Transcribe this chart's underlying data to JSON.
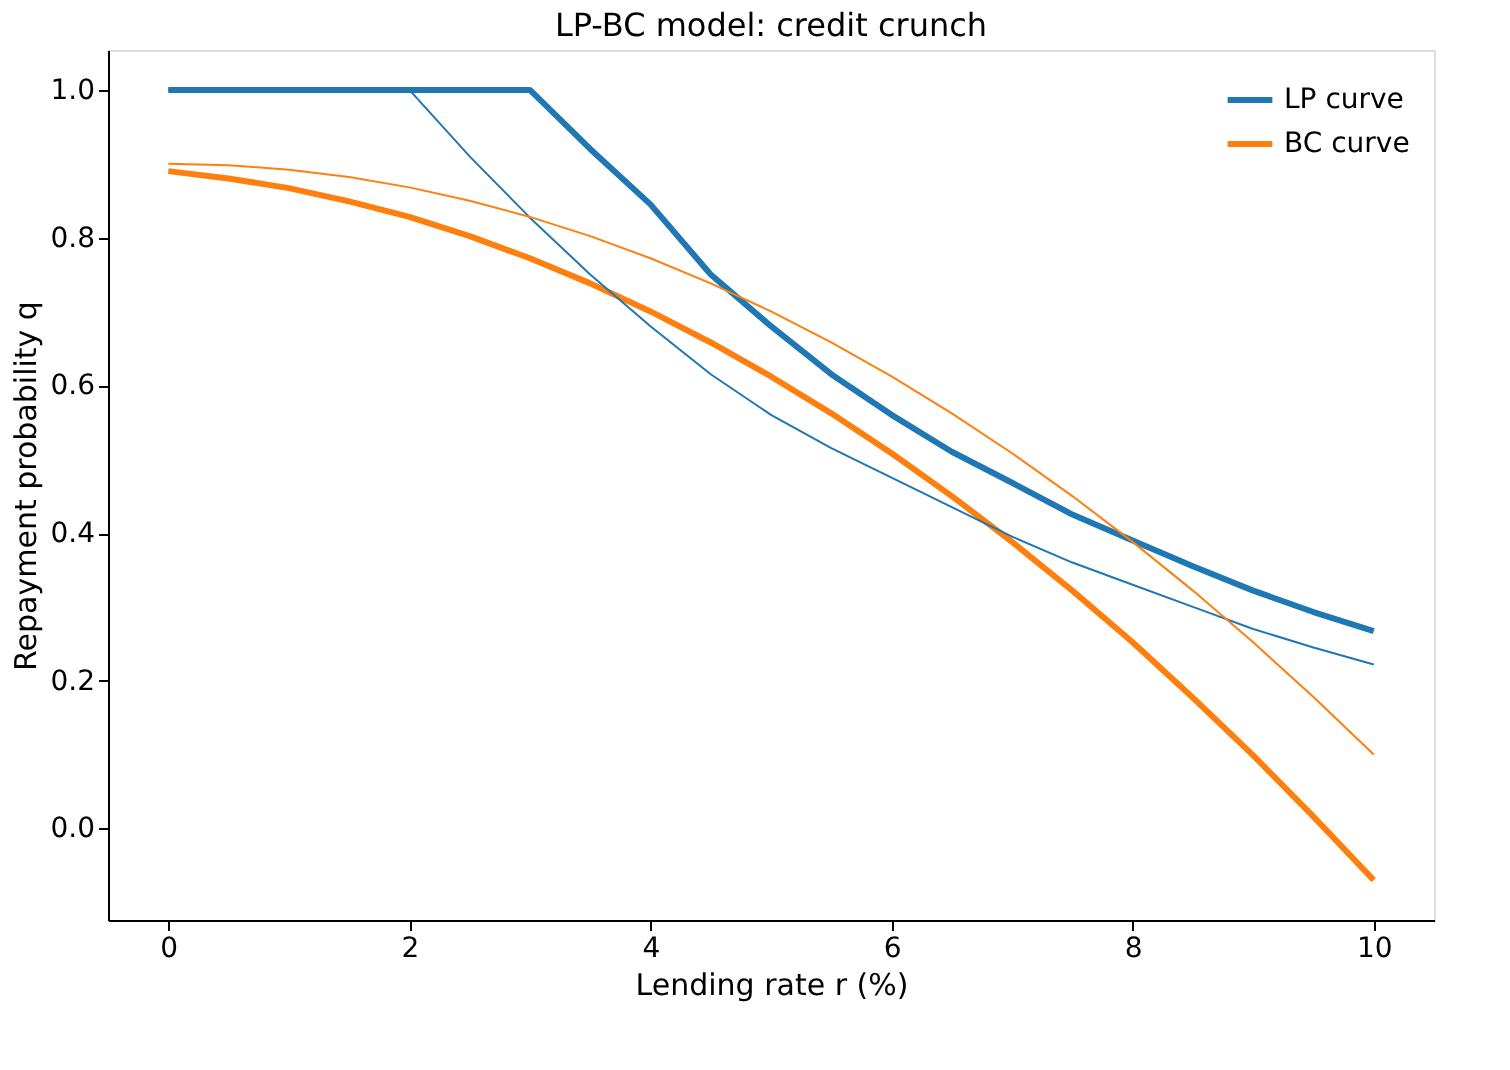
{
  "chart_data": {
    "type": "line",
    "title": "LP-BC model: credit crunch",
    "xlabel": "Lending rate r (%)",
    "ylabel": "Repayment probability q",
    "x": [
      0,
      0.5,
      1,
      1.5,
      2,
      2.5,
      3,
      3.5,
      4,
      4.5,
      5,
      5.5,
      6,
      6.5,
      7,
      7.5,
      8,
      8.5,
      9,
      9.5,
      10
    ],
    "series": [
      {
        "name": "LP curve",
        "color": "#1f77b4",
        "values": [
          1,
          1,
          1,
          1,
          1,
          1,
          1,
          0.92,
          0.845,
          0.75,
          0.68,
          0.615,
          0.56,
          0.51,
          0.468,
          0.425,
          0.39,
          0.355,
          0.322,
          0.293,
          0.267
        ]
      },
      {
        "name": "BC curve",
        "color": "#ff7f0e",
        "values": [
          0.89,
          0.88,
          0.867,
          0.849,
          0.828,
          0.802,
          0.772,
          0.738,
          0.7,
          0.658,
          0.612,
          0.562,
          0.508,
          0.45,
          0.388,
          0.322,
          0.252,
          0.177,
          0.099,
          0.016,
          -0.07
        ]
      },
      {
        "color": "#1f77b4",
        "values": [
          1,
          1,
          1,
          1,
          1,
          0.91,
          0.827,
          0.75,
          0.68,
          0.615,
          0.56,
          0.515,
          0.475,
          0.435,
          0.395,
          0.36,
          0.33,
          0.3,
          0.27,
          0.245,
          0.222
        ]
      },
      {
        "color": "#ff7f0e",
        "values": [
          0.9,
          0.898,
          0.892,
          0.882,
          0.868,
          0.85,
          0.828,
          0.802,
          0.772,
          0.738,
          0.7,
          0.658,
          0.612,
          0.562,
          0.508,
          0.45,
          0.388,
          0.322,
          0.252,
          0.178,
          0.1
        ]
      }
    ],
    "xlim": [
      -0.5,
      10.5
    ],
    "xticks": [
      0,
      2,
      4,
      6,
      8,
      10
    ],
    "ylim": [
      -0.124,
      1.054
    ],
    "yticks": [
      {
        "value": 0,
        "label": "0.0"
      },
      0.2,
      0.4,
      0.6,
      0.8,
      {
        "value": 1,
        "label": "1.0"
      }
    ],
    "legend": "top right",
    "grid": false,
    "marker": "none",
    "line_style": "solid"
  }
}
